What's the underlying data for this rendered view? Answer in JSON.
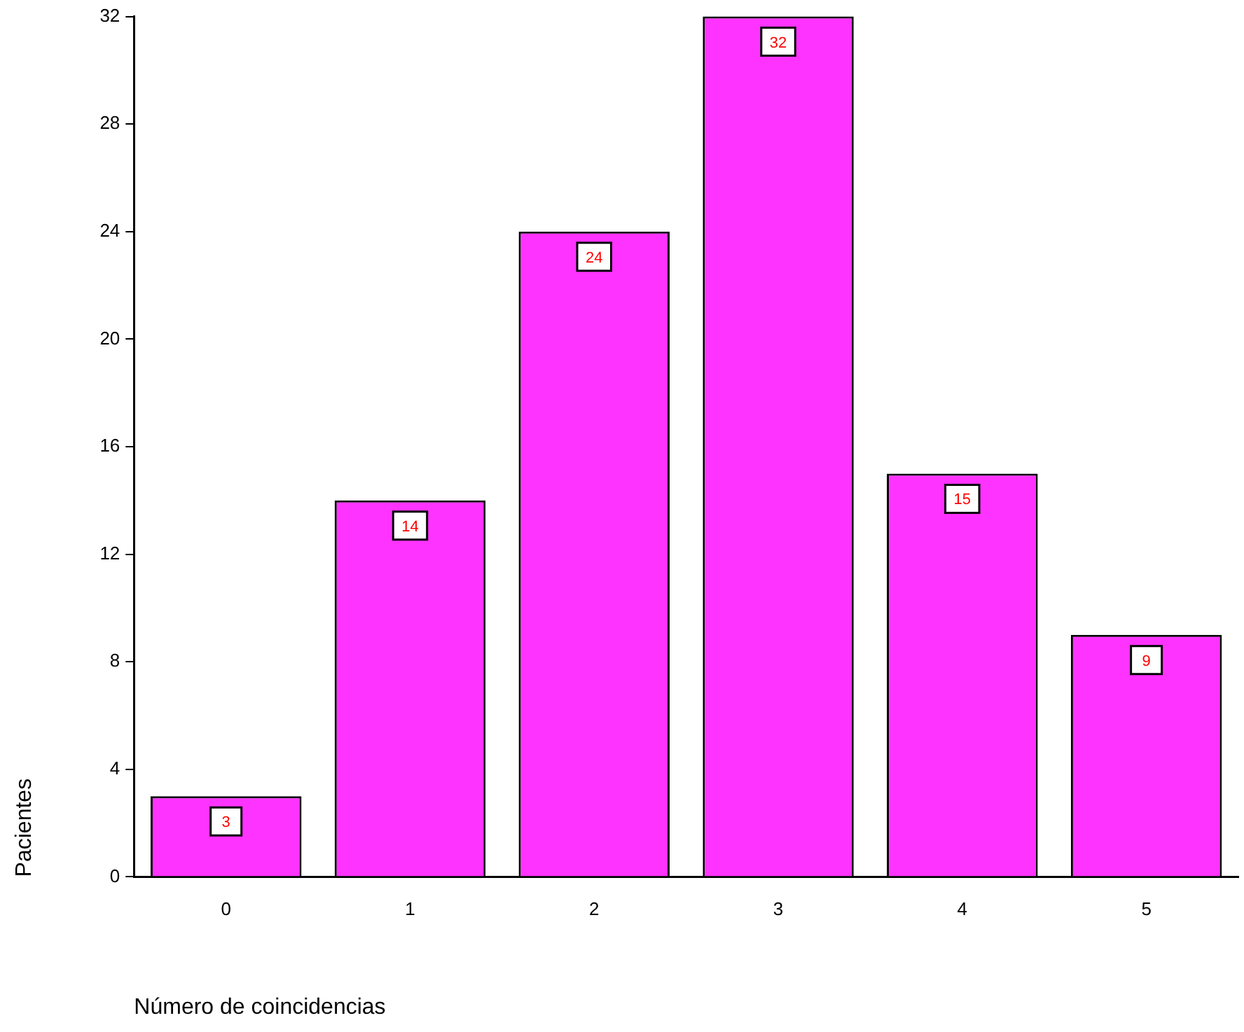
{
  "chart_data": {
    "type": "bar",
    "xlabel": "Número de coincidencias",
    "ylabel": "Pacientes",
    "categories": [
      "0",
      "1",
      "2",
      "3",
      "4",
      "5"
    ],
    "values": [
      3,
      14,
      24,
      32,
      15,
      9
    ],
    "color": "#ff33ff",
    "ylim": [
      0,
      32
    ],
    "yticks": [
      0,
      4,
      8,
      12,
      16,
      20,
      24,
      28,
      32
    ],
    "data_labels": true,
    "grid": false,
    "legend": false
  }
}
